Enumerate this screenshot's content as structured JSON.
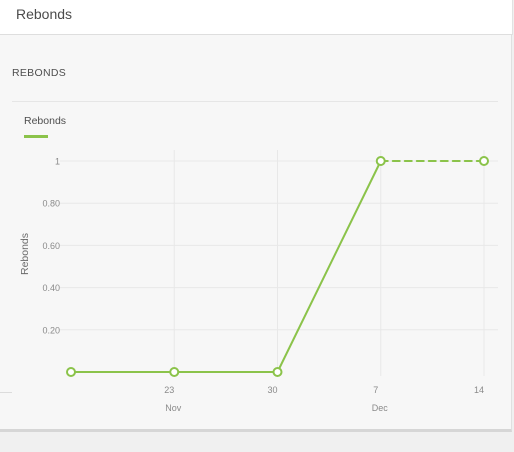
{
  "header": {
    "title": "Rebonds"
  },
  "section": {
    "title": "REBONDS"
  },
  "colors": {
    "series": "#8bc34a",
    "grid": "#e8e8e8",
    "tick_text": "#8a8a8a",
    "axis_title": "#6a6a6a"
  },
  "chart_data": {
    "type": "line",
    "title": "",
    "ylabel": "Rebonds",
    "xlabel": "",
    "ylim": [
      0,
      1
    ],
    "yticks": [
      {
        "value": 0.2,
        "label": "0.20"
      },
      {
        "value": 0.4,
        "label": "0.40"
      },
      {
        "value": 0.6,
        "label": "0.60"
      },
      {
        "value": 0.8,
        "label": "0.80"
      },
      {
        "value": 1,
        "label": "1"
      }
    ],
    "xlim": [
      "2015-11-16",
      "2015-12-14"
    ],
    "xticks": [
      {
        "value": "2015-11-23",
        "label": "23",
        "month": "Nov"
      },
      {
        "value": "2015-11-30",
        "label": "30",
        "month": ""
      },
      {
        "value": "2015-12-07",
        "label": "7",
        "month": "Dec"
      },
      {
        "value": "2015-12-14",
        "label": "14",
        "month": ""
      }
    ],
    "grid": true,
    "legend": "top-left",
    "series": [
      {
        "name": "Rebonds",
        "color": "#8bc34a",
        "points": [
          {
            "x": "2015-11-16",
            "y": 0
          },
          {
            "x": "2015-11-23",
            "y": 0
          },
          {
            "x": "2015-11-30",
            "y": 0
          },
          {
            "x": "2015-12-07",
            "y": 1
          },
          {
            "x": "2015-12-14",
            "y": 1
          }
        ],
        "dashed_from": "2015-12-07"
      }
    ]
  }
}
